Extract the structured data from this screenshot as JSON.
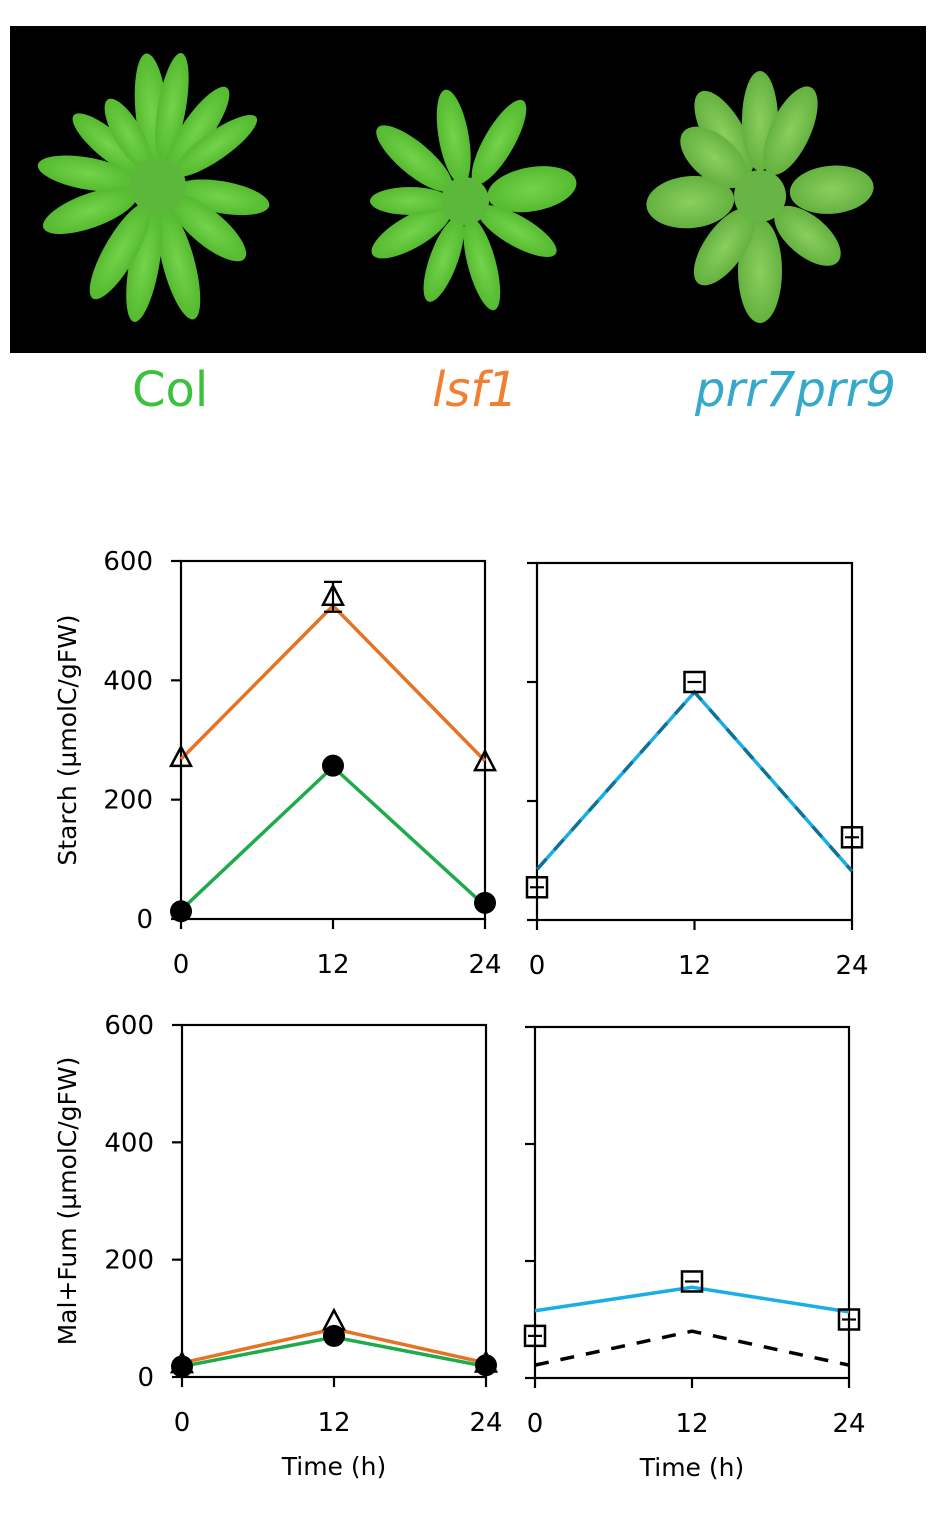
{
  "photo": {
    "description": "Top-view photograph of three Arabidopsis rosettes on black background",
    "plants": [
      {
        "name": "Col",
        "color": "#3cc13c",
        "italic": false
      },
      {
        "name": "lsf1",
        "color": "#f07f32",
        "italic": true
      },
      {
        "name": "prr7prr9",
        "color": "#35a9cc",
        "italic": true
      }
    ]
  },
  "labels": {
    "col": "Col",
    "lsf1": "lsf1",
    "prr": "prr7prr9"
  },
  "colors": {
    "col_line": "#1faa4c",
    "lsf1_line": "#e57325",
    "prr_line": "#1aaee6",
    "marker": "#000000",
    "leaf": "#5ec43a"
  },
  "axes": {
    "starch_ylabel": "Starch (µmolC/gFW)",
    "malfum_ylabel": "Mal+Fum (µmolC/gFW)",
    "xlabel": "Time (h)",
    "yticks": [
      "600",
      "400",
      "200",
      "0"
    ],
    "xticks": [
      "0",
      "12",
      "24"
    ]
  },
  "chart_data": [
    {
      "type": "line",
      "panel": "top-left",
      "title": "",
      "xlabel": "",
      "ylabel": "Starch (µmolC/gFW)",
      "x": [
        0,
        12,
        24
      ],
      "xlim": [
        0,
        24
      ],
      "ylim": [
        0,
        600
      ],
      "yticks": [
        0,
        200,
        400,
        600
      ],
      "xticks": [
        0,
        12,
        24
      ],
      "grid": false,
      "series": [
        {
          "name": "lsf1 model",
          "style": "solid",
          "color": "#e57325",
          "values": [
            268,
            525,
            265
          ]
        },
        {
          "name": "lsf1 data",
          "marker": "open-triangle",
          "values": [
            270,
            540,
            263
          ],
          "errors": [
            0,
            25,
            0
          ]
        },
        {
          "name": "Col model",
          "style": "solid",
          "color": "#1faa4c",
          "values": [
            15,
            255,
            22
          ]
        },
        {
          "name": "Col data",
          "marker": "filled-circle",
          "values": [
            13,
            257,
            27
          ]
        }
      ]
    },
    {
      "type": "line",
      "panel": "top-right",
      "title": "",
      "xlabel": "",
      "ylabel": "",
      "x": [
        0,
        12,
        24
      ],
      "xlim": [
        0,
        24
      ],
      "ylim": [
        0,
        600
      ],
      "yticks": [
        0,
        200,
        400,
        600
      ],
      "xticks": [
        0,
        12,
        24
      ],
      "grid": false,
      "series": [
        {
          "name": "prr7prr9 model",
          "style": "solid",
          "color": "#1aaee6",
          "values": [
            85,
            383,
            82
          ]
        },
        {
          "name": "Col model (dashed, overlapping)",
          "style": "dashed",
          "color": "#000000",
          "values": [
            85,
            383,
            82
          ]
        },
        {
          "name": "prr7prr9 data",
          "marker": "open-square",
          "values": [
            55,
            400,
            139
          ]
        }
      ]
    },
    {
      "type": "line",
      "panel": "bottom-left",
      "title": "",
      "xlabel": "Time (h)",
      "ylabel": "Mal+Fum (µmolC/gFW)",
      "x": [
        0,
        12,
        24
      ],
      "xlim": [
        0,
        24
      ],
      "ylim": [
        0,
        600
      ],
      "yticks": [
        0,
        200,
        400,
        600
      ],
      "xticks": [
        0,
        12,
        24
      ],
      "grid": false,
      "series": [
        {
          "name": "lsf1 model",
          "style": "solid",
          "color": "#e57325",
          "values": [
            24,
            82,
            24
          ]
        },
        {
          "name": "lsf1 data",
          "marker": "open-triangle",
          "values": [
            22,
            95,
            23
          ]
        },
        {
          "name": "Col model",
          "style": "solid",
          "color": "#1faa4c",
          "values": [
            18,
            68,
            18
          ]
        },
        {
          "name": "Col data",
          "marker": "filled-circle",
          "values": [
            18,
            70,
            20
          ]
        }
      ]
    },
    {
      "type": "line",
      "panel": "bottom-right",
      "title": "",
      "xlabel": "Time (h)",
      "ylabel": "",
      "x": [
        0,
        12,
        24
      ],
      "xlim": [
        0,
        24
      ],
      "ylim": [
        0,
        600
      ],
      "yticks": [
        0,
        200,
        400,
        600
      ],
      "xticks": [
        0,
        12,
        24
      ],
      "grid": false,
      "series": [
        {
          "name": "prr7prr9 model",
          "style": "solid",
          "color": "#1aaee6",
          "values": [
            115,
            155,
            113
          ]
        },
        {
          "name": "Col model",
          "style": "dashed",
          "color": "#000000",
          "values": [
            22,
            80,
            22
          ]
        },
        {
          "name": "prr7prr9 data",
          "marker": "open-square",
          "values": [
            72,
            165,
            100
          ]
        }
      ]
    }
  ]
}
